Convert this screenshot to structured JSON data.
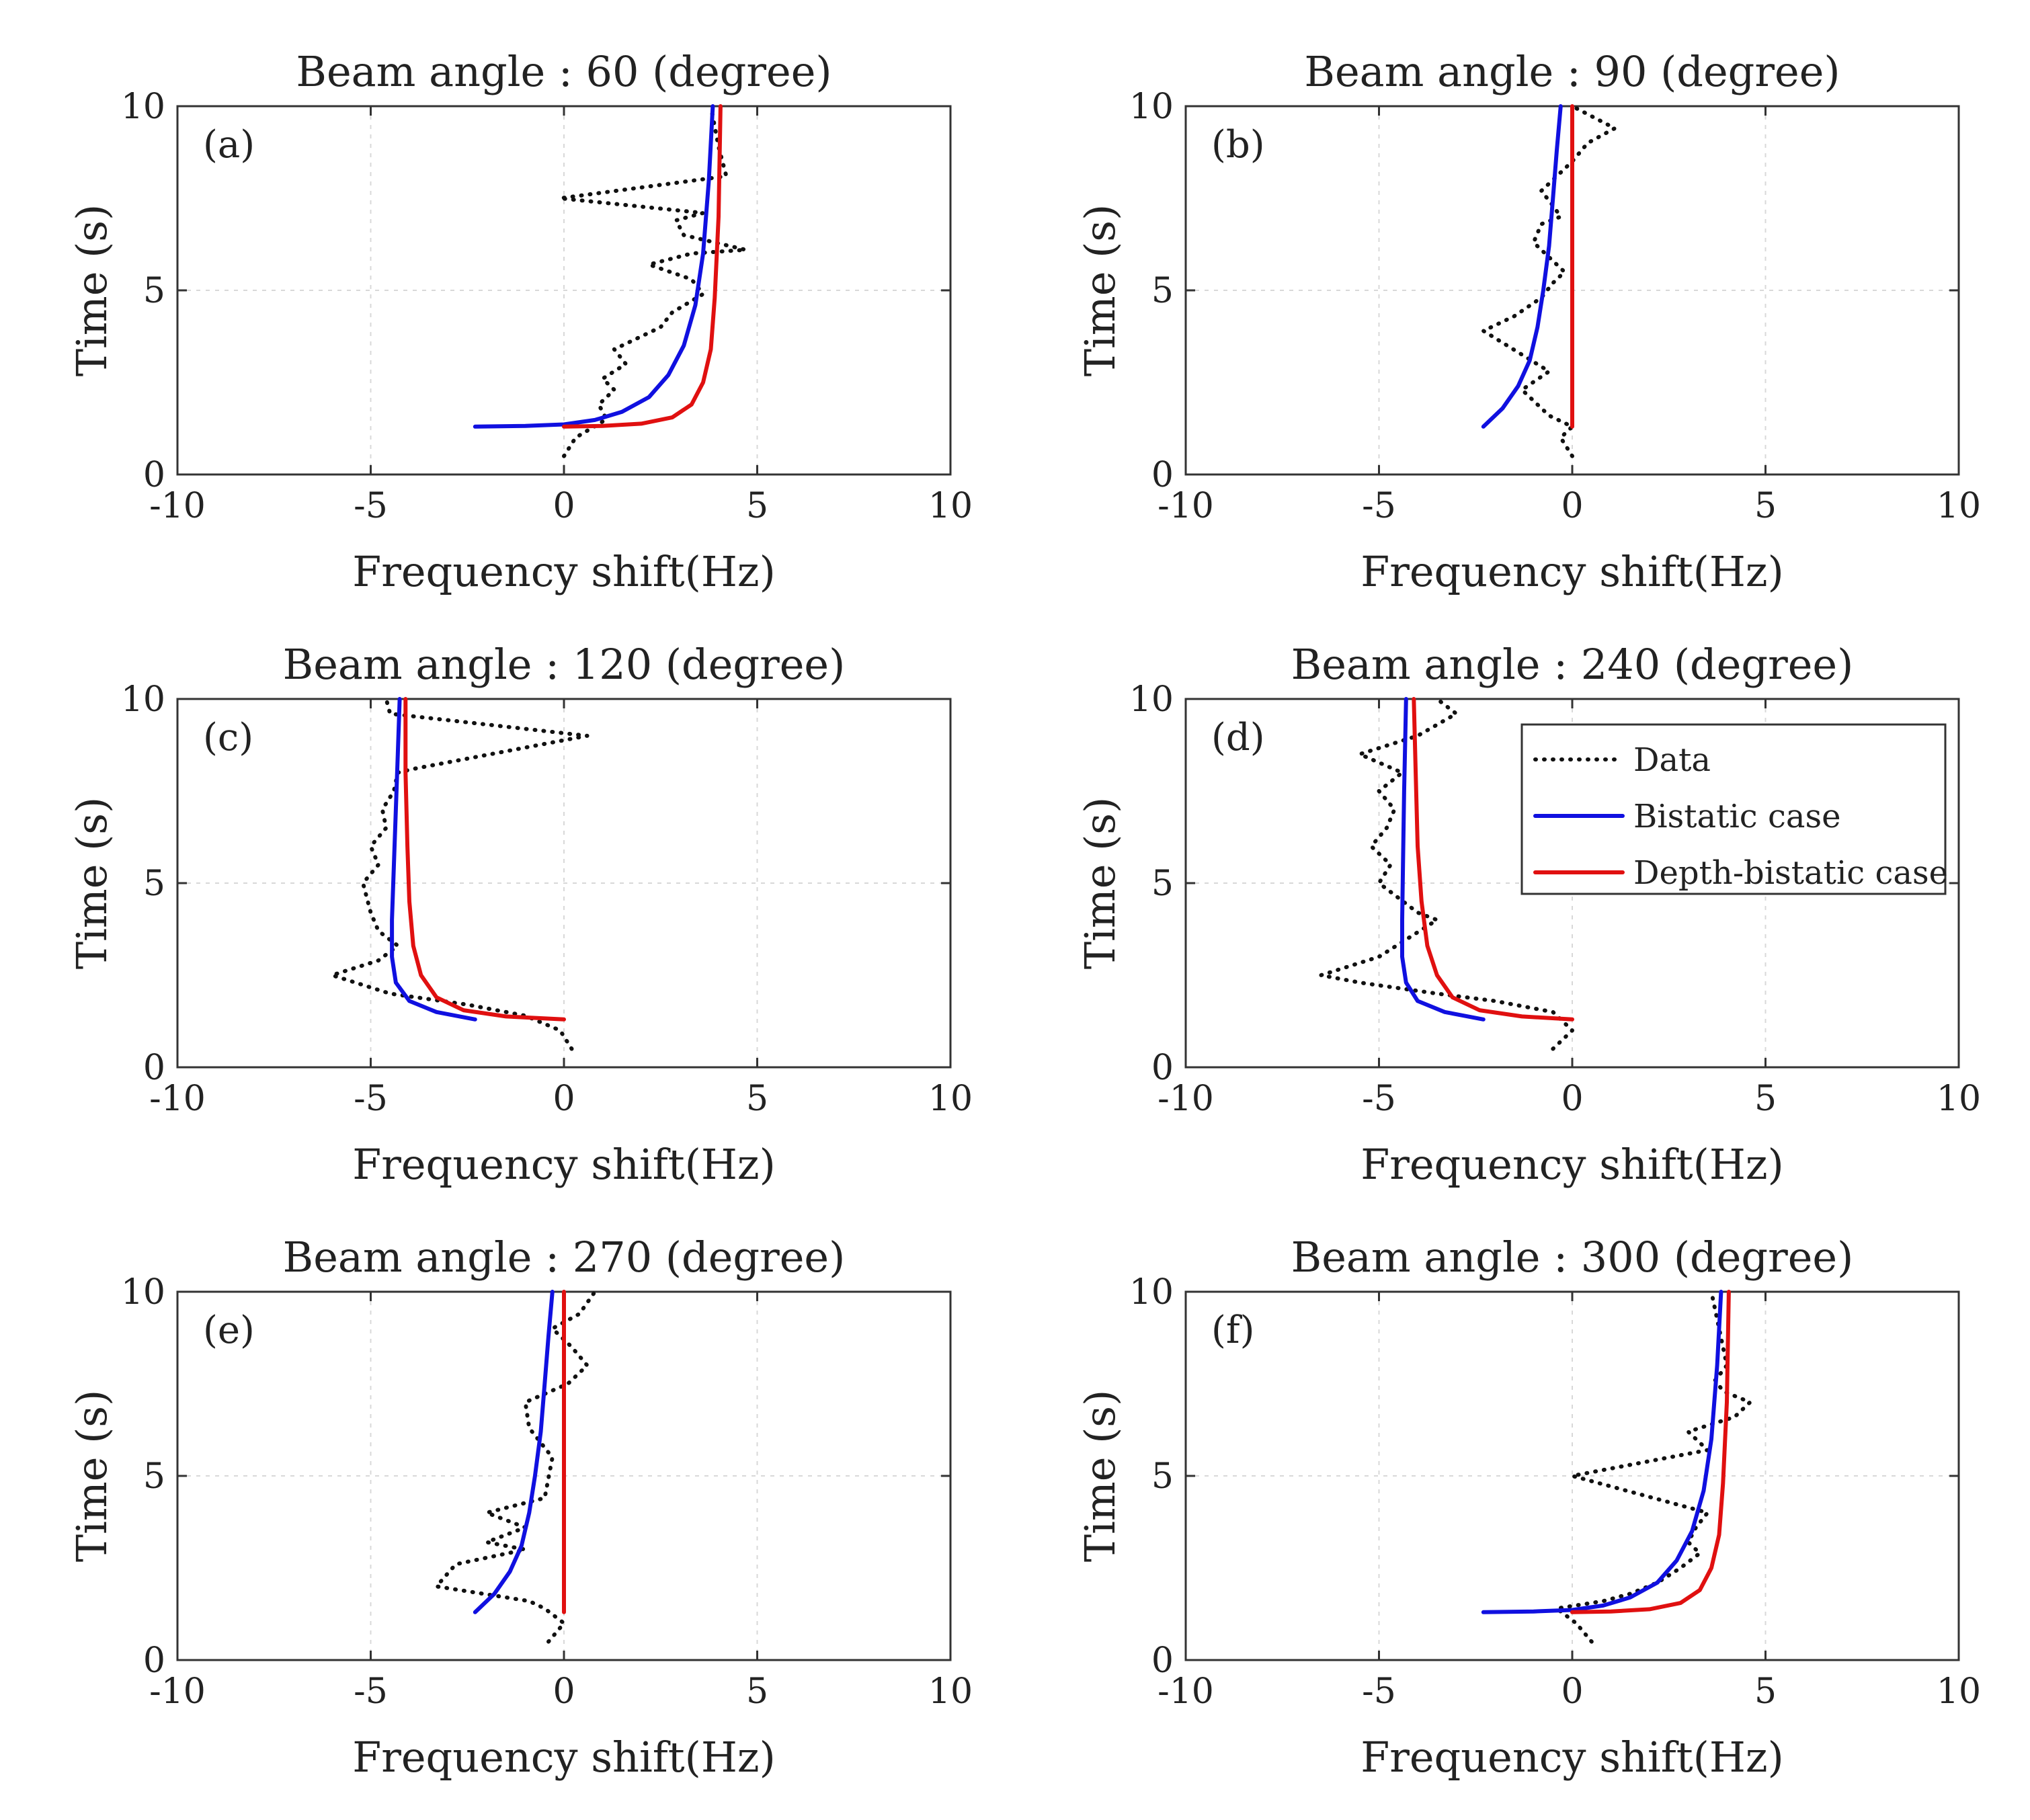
{
  "chart_data": [
    {
      "type": "line",
      "panel": "(a)",
      "title": "Beam angle : 60 (degree)",
      "xlabel": "Frequency shift(Hz)",
      "ylabel": "Time (s)",
      "xlim": [
        -10,
        10
      ],
      "ylim": [
        0,
        10
      ],
      "xticks": [
        "-10",
        "-5",
        "0",
        "5",
        "10"
      ],
      "yticks": [
        "0",
        "5",
        "10"
      ],
      "grid": true,
      "series": [
        {
          "name": "Data",
          "style": "dotted",
          "color": "#111111",
          "x": [
            0.0,
            0.3,
            1.1,
            0.9,
            1.3,
            1.0,
            1.6,
            1.3,
            2.5,
            2.8,
            3.6,
            3.3,
            2.2,
            3.3,
            4.7,
            3.1,
            2.9,
            3.6,
            -0.1,
            4.2,
            4.0,
            3.8
          ],
          "y": [
            0.5,
            1.0,
            1.5,
            1.9,
            2.3,
            2.6,
            3.0,
            3.4,
            4.0,
            4.4,
            4.9,
            5.3,
            5.7,
            6.0,
            6.1,
            6.5,
            6.9,
            7.1,
            7.5,
            8.1,
            8.9,
            10.0
          ]
        },
        {
          "name": "Bistatic case",
          "style": "solid",
          "color": "#1010e0",
          "x": [
            -2.3,
            -1.0,
            0.0,
            0.8,
            1.5,
            2.2,
            2.7,
            3.1,
            3.4,
            3.6,
            3.75,
            3.85
          ],
          "y": [
            1.3,
            1.32,
            1.36,
            1.48,
            1.7,
            2.1,
            2.7,
            3.5,
            4.6,
            6.0,
            8.0,
            10.0
          ]
        },
        {
          "name": "Depth-bistatic case",
          "style": "solid",
          "color": "#e01010",
          "x": [
            0.0,
            1.0,
            2.0,
            2.8,
            3.3,
            3.6,
            3.8,
            3.9,
            4.0,
            4.05
          ],
          "y": [
            1.3,
            1.32,
            1.38,
            1.55,
            1.9,
            2.5,
            3.4,
            4.8,
            7.0,
            10.0
          ]
        }
      ]
    },
    {
      "type": "line",
      "panel": "(b)",
      "title": "Beam angle : 90 (degree)",
      "xlabel": "Frequency shift(Hz)",
      "ylabel": "Time (s)",
      "xlim": [
        -10,
        10
      ],
      "ylim": [
        0,
        10
      ],
      "xticks": [
        "-10",
        "-5",
        "0",
        "5",
        "10"
      ],
      "yticks": [
        "0",
        "5",
        "10"
      ],
      "grid": true,
      "series": [
        {
          "name": "Data",
          "style": "dotted",
          "color": "#111111",
          "x": [
            0.0,
            -0.3,
            0.0,
            -0.6,
            -1.3,
            -0.6,
            -2.3,
            -1.5,
            -0.8,
            -0.5,
            -0.2,
            -0.6,
            -1.0,
            -0.8,
            -0.3,
            -0.5,
            -0.8,
            -0.5,
            0.0,
            0.4,
            1.1,
            0.0
          ],
          "y": [
            0.5,
            1.0,
            1.3,
            1.6,
            2.3,
            2.8,
            3.9,
            4.3,
            4.8,
            5.2,
            5.5,
            5.9,
            6.3,
            6.8,
            7.0,
            7.3,
            7.7,
            8.0,
            8.5,
            9.0,
            9.4,
            10.0
          ]
        },
        {
          "name": "Bistatic case",
          "style": "solid",
          "color": "#1010e0",
          "x": [
            -2.3,
            -1.8,
            -1.4,
            -1.1,
            -0.9,
            -0.75,
            -0.6,
            -0.5,
            -0.4,
            -0.3
          ],
          "y": [
            1.3,
            1.8,
            2.4,
            3.1,
            4.0,
            5.0,
            6.2,
            7.5,
            8.8,
            10.0
          ]
        },
        {
          "name": "Depth-bistatic case",
          "style": "solid",
          "color": "#e01010",
          "x": [
            0.0,
            0.0
          ],
          "y": [
            1.3,
            10.0
          ]
        }
      ]
    },
    {
      "type": "line",
      "panel": "(c)",
      "title": "Beam angle : 120 (degree)",
      "xlabel": "Frequency shift(Hz)",
      "ylabel": "Time (s)",
      "xlim": [
        -10,
        10
      ],
      "ylim": [
        0,
        10
      ],
      "xticks": [
        "-10",
        "-5",
        "0",
        "5",
        "10"
      ],
      "yticks": [
        "0",
        "5",
        "10"
      ],
      "grid": true,
      "series": [
        {
          "name": "Data",
          "style": "dotted",
          "color": "#111111",
          "x": [
            0.2,
            -0.1,
            -1.0,
            -2.5,
            -4.5,
            -6.0,
            -4.8,
            -4.3,
            -4.8,
            -5.0,
            -5.2,
            -4.8,
            -5.0,
            -4.6,
            -4.7,
            -4.4,
            -4.3,
            -3.9,
            0.6,
            -4.5,
            -4.6
          ],
          "y": [
            0.5,
            1.0,
            1.4,
            1.7,
            2.0,
            2.5,
            2.9,
            3.3,
            3.7,
            4.2,
            5.0,
            5.5,
            6.0,
            6.5,
            7.0,
            7.5,
            8.0,
            8.1,
            9.0,
            9.6,
            10.0
          ]
        },
        {
          "name": "Bistatic case",
          "style": "solid",
          "color": "#1010e0",
          "x": [
            -2.3,
            -3.3,
            -4.0,
            -4.35,
            -4.45,
            -4.45,
            -4.4,
            -4.35,
            -4.3,
            -4.25
          ],
          "y": [
            1.3,
            1.5,
            1.8,
            2.3,
            3.0,
            4.0,
            5.5,
            7.0,
            8.5,
            10.0
          ]
        },
        {
          "name": "Depth-bistatic case",
          "style": "solid",
          "color": "#e01010",
          "x": [
            0.0,
            -1.5,
            -2.6,
            -3.3,
            -3.7,
            -3.9,
            -4.0,
            -4.05,
            -4.1,
            -4.1
          ],
          "y": [
            1.3,
            1.38,
            1.55,
            1.9,
            2.5,
            3.3,
            4.5,
            6.0,
            8.0,
            10.0
          ]
        }
      ]
    },
    {
      "type": "line",
      "panel": "(d)",
      "title": "Beam angle : 240 (degree)",
      "xlabel": "Frequency shift(Hz)",
      "ylabel": "Time (s)",
      "xlim": [
        -10,
        10
      ],
      "ylim": [
        0,
        10
      ],
      "xticks": [
        "-10",
        "-5",
        "0",
        "5",
        "10"
      ],
      "yticks": [
        "0",
        "5",
        "10"
      ],
      "grid": true,
      "series": [
        {
          "name": "Data",
          "style": "dotted",
          "color": "#111111",
          "x": [
            -0.5,
            0.0,
            -0.5,
            -2.0,
            -3.5,
            -5.5,
            -6.5,
            -5.0,
            -3.5,
            -4.0,
            -4.5,
            -5.0,
            -4.7,
            -5.2,
            -4.8,
            -4.6,
            -5.0,
            -4.4,
            -5.5,
            -4.0,
            -3.0,
            -3.5
          ],
          "y": [
            0.5,
            1.0,
            1.5,
            1.8,
            2.0,
            2.3,
            2.5,
            3.0,
            4.0,
            4.2,
            4.6,
            5.0,
            5.5,
            6.0,
            6.5,
            7.0,
            7.5,
            8.0,
            8.5,
            9.0,
            9.6,
            10.0
          ]
        },
        {
          "name": "Bistatic case",
          "style": "solid",
          "color": "#1010e0",
          "x": [
            -2.3,
            -3.3,
            -4.0,
            -4.3,
            -4.4,
            -4.4,
            -4.38,
            -4.35,
            -4.3
          ],
          "y": [
            1.3,
            1.5,
            1.8,
            2.3,
            3.0,
            4.0,
            5.5,
            7.5,
            10.0
          ]
        },
        {
          "name": "Depth-bistatic case",
          "style": "solid",
          "color": "#e01010",
          "x": [
            0.0,
            -1.3,
            -2.4,
            -3.1,
            -3.5,
            -3.75,
            -3.9,
            -4.0,
            -4.05,
            -4.1
          ],
          "y": [
            1.3,
            1.38,
            1.55,
            1.9,
            2.5,
            3.3,
            4.5,
            6.0,
            8.0,
            10.0
          ]
        }
      ],
      "legend": {
        "placement": "top-right",
        "entries": [
          "Data",
          "Bistatic case",
          "Depth-bistatic case"
        ]
      }
    },
    {
      "type": "line",
      "panel": "(e)",
      "title": "Beam angle : 270 (degree)",
      "xlabel": "Frequency shift(Hz)",
      "ylabel": "Time (s)",
      "xlim": [
        -10,
        10
      ],
      "ylim": [
        0,
        10
      ],
      "xticks": [
        "-10",
        "-5",
        "0",
        "5",
        "10"
      ],
      "yticks": [
        "0",
        "5",
        "10"
      ],
      "grid": true,
      "series": [
        {
          "name": "Data",
          "style": "dotted",
          "color": "#111111",
          "x": [
            -0.4,
            0.0,
            -0.5,
            -0.9,
            -3.3,
            -2.8,
            -1.0,
            -2.0,
            -1.0,
            -2.0,
            -0.5,
            -0.3,
            -0.9,
            -1.0,
            0.1,
            0.6,
            0.2,
            -0.3,
            0.4,
            0.8
          ],
          "y": [
            0.5,
            1.0,
            1.4,
            1.6,
            2.0,
            2.6,
            3.0,
            3.2,
            3.6,
            4.0,
            4.4,
            5.5,
            6.3,
            7.0,
            7.5,
            8.0,
            8.5,
            9.0,
            9.4,
            10.0
          ]
        },
        {
          "name": "Bistatic case",
          "style": "solid",
          "color": "#1010e0",
          "x": [
            -2.3,
            -1.8,
            -1.4,
            -1.1,
            -0.9,
            -0.75,
            -0.6,
            -0.5,
            -0.4,
            -0.3
          ],
          "y": [
            1.3,
            1.8,
            2.4,
            3.1,
            4.0,
            5.0,
            6.2,
            7.5,
            8.8,
            10.0
          ]
        },
        {
          "name": "Depth-bistatic case",
          "style": "solid",
          "color": "#e01010",
          "x": [
            0.0,
            0.0
          ],
          "y": [
            1.3,
            10.0
          ]
        }
      ]
    },
    {
      "type": "line",
      "panel": "(f)",
      "title": "Beam angle : 300 (degree)",
      "xlabel": "Frequency shift(Hz)",
      "ylabel": "Time (s)",
      "xlim": [
        -10,
        10
      ],
      "ylim": [
        0,
        10
      ],
      "xticks": [
        "-10",
        "-5",
        "0",
        "5",
        "10"
      ],
      "yticks": [
        "0",
        "5",
        "10"
      ],
      "grid": true,
      "series": [
        {
          "name": "Data",
          "style": "dotted",
          "color": "#111111",
          "x": [
            0.5,
            0.1,
            -0.4,
            0.8,
            1.5,
            2.2,
            2.8,
            3.3,
            3.0,
            3.2,
            3.5,
            0.0,
            3.5,
            3.0,
            4.2,
            4.6,
            3.9,
            3.7,
            4.0,
            3.8,
            3.6
          ],
          "y": [
            0.5,
            1.0,
            1.4,
            1.6,
            1.8,
            2.1,
            2.5,
            2.9,
            3.2,
            3.6,
            4.0,
            5.0,
            5.7,
            6.2,
            6.6,
            7.0,
            7.3,
            7.6,
            8.0,
            9.0,
            10.0
          ]
        },
        {
          "name": "Bistatic case",
          "style": "solid",
          "color": "#1010e0",
          "x": [
            -2.3,
            -1.0,
            0.0,
            0.8,
            1.5,
            2.2,
            2.7,
            3.1,
            3.4,
            3.6,
            3.75,
            3.85
          ],
          "y": [
            1.3,
            1.32,
            1.36,
            1.48,
            1.7,
            2.1,
            2.7,
            3.5,
            4.6,
            6.0,
            8.0,
            10.0
          ]
        },
        {
          "name": "Depth-bistatic case",
          "style": "solid",
          "color": "#e01010",
          "x": [
            0.0,
            1.0,
            2.0,
            2.8,
            3.3,
            3.6,
            3.8,
            3.9,
            4.0,
            4.05
          ],
          "y": [
            1.3,
            1.32,
            1.38,
            1.55,
            1.9,
            2.5,
            3.4,
            4.8,
            7.0,
            10.0
          ]
        }
      ]
    }
  ]
}
